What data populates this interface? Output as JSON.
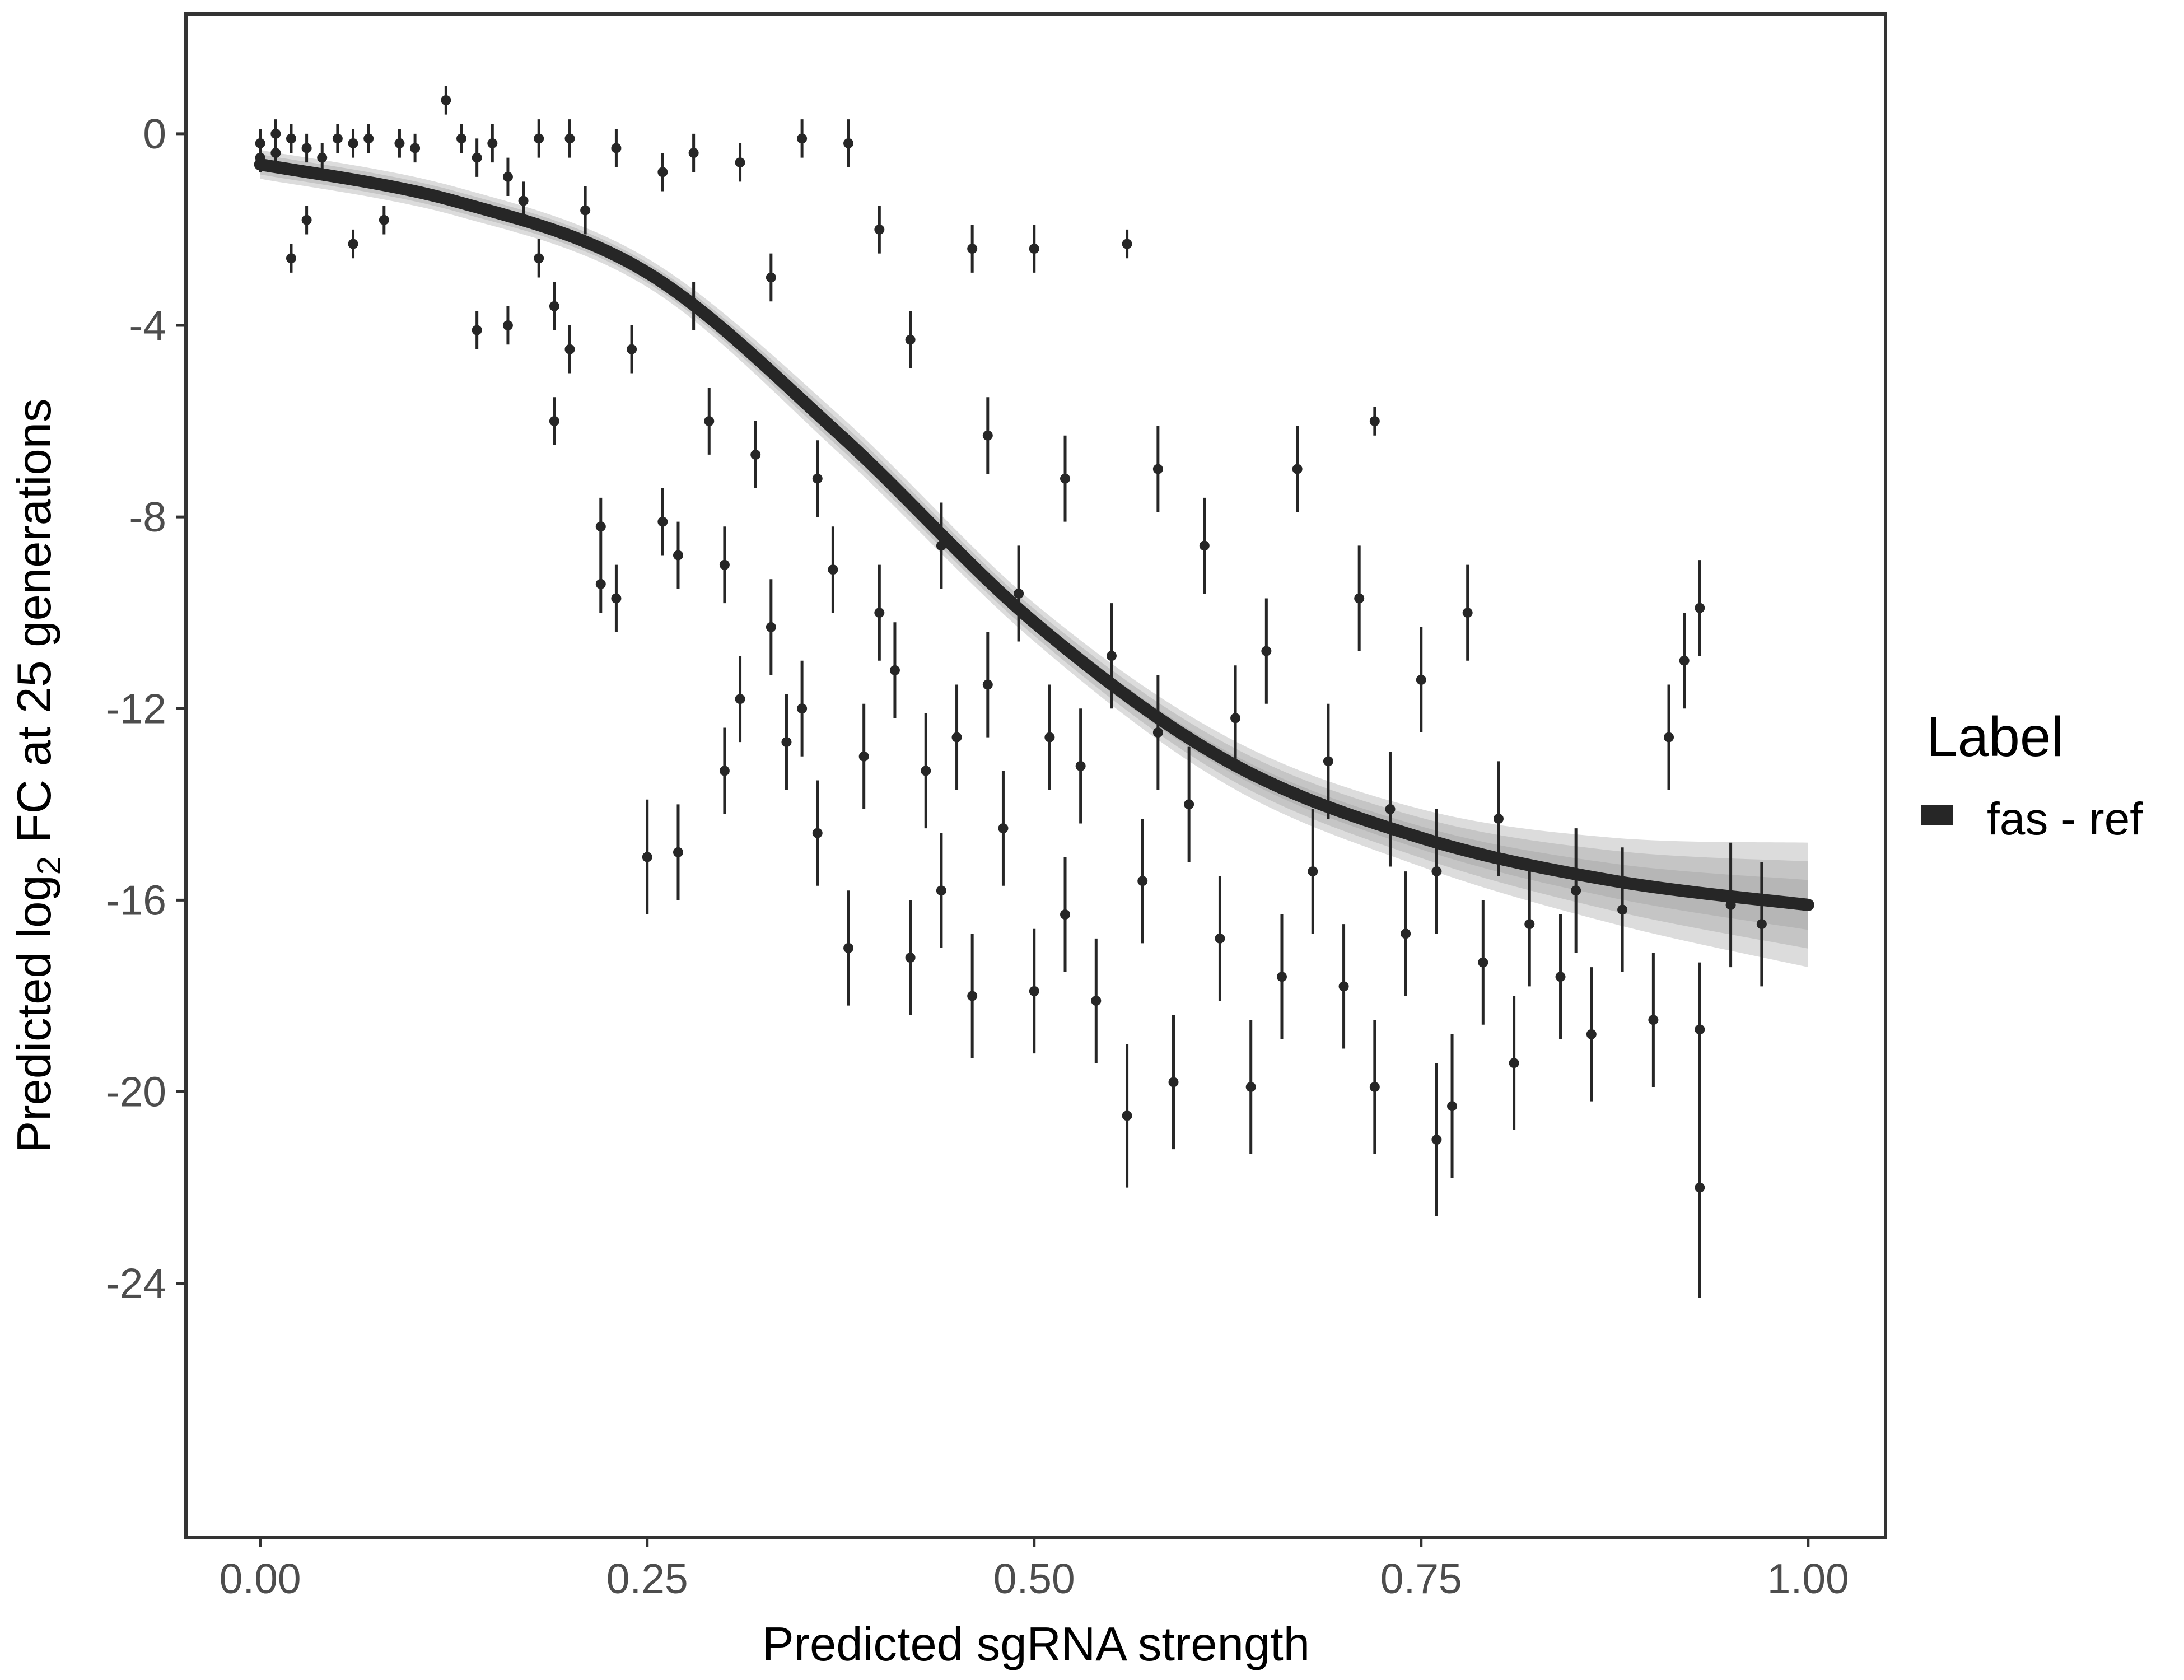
{
  "chart_data": {
    "type": "scatter",
    "xlabel": "Predicted sgRNA strength",
    "ylabel_parts": [
      "Predicted  log",
      "2",
      " FC at 25 generations"
    ],
    "xlim": [
      -0.048,
      1.05
    ],
    "ylim": [
      -29.3,
      2.5
    ],
    "xticks": [
      0,
      0.25,
      0.5,
      0.75,
      1.0
    ],
    "xtick_labels": [
      "0.00",
      "0.25",
      "0.50",
      "0.75",
      "1.00"
    ],
    "yticks": [
      0,
      -4,
      -8,
      -12,
      -16,
      -20,
      -24
    ],
    "ytick_labels": [
      "0",
      "-4",
      "-8",
      "-12",
      "-16",
      "-20",
      "-24"
    ],
    "grid": false,
    "legend": {
      "title": "Label",
      "position": "right",
      "entries": [
        {
          "label": "fas - ref",
          "color": "#262626"
        }
      ]
    },
    "colors": {
      "points": "#262626",
      "fit": "#262626",
      "band": "#9a9a9a"
    },
    "points_with_errorbars": [
      [
        0.0,
        -0.2,
        0.3
      ],
      [
        0.0,
        -0.5,
        0.3
      ],
      [
        0.01,
        0.0,
        0.3
      ],
      [
        0.01,
        -0.4,
        0.3
      ],
      [
        0.02,
        -2.6,
        0.3
      ],
      [
        0.02,
        -0.1,
        0.3
      ],
      [
        0.03,
        -0.3,
        0.3
      ],
      [
        0.03,
        -1.8,
        0.3
      ],
      [
        0.04,
        -0.5,
        0.3
      ],
      [
        0.05,
        -0.1,
        0.3
      ],
      [
        0.06,
        -0.2,
        0.3
      ],
      [
        0.06,
        -2.3,
        0.3
      ],
      [
        0.07,
        -0.1,
        0.3
      ],
      [
        0.08,
        -1.8,
        0.3
      ],
      [
        0.09,
        -0.2,
        0.3
      ],
      [
        0.1,
        -0.3,
        0.3
      ],
      [
        0.12,
        0.7,
        0.3
      ],
      [
        0.13,
        -0.1,
        0.3
      ],
      [
        0.14,
        -0.5,
        0.4
      ],
      [
        0.14,
        -4.1,
        0.4
      ],
      [
        0.15,
        -0.2,
        0.4
      ],
      [
        0.16,
        -4.0,
        0.4
      ],
      [
        0.16,
        -0.9,
        0.4
      ],
      [
        0.17,
        -1.4,
        0.4
      ],
      [
        0.18,
        -2.6,
        0.4
      ],
      [
        0.18,
        -0.1,
        0.4
      ],
      [
        0.19,
        -3.6,
        0.5
      ],
      [
        0.19,
        -6.0,
        0.5
      ],
      [
        0.2,
        -0.1,
        0.4
      ],
      [
        0.2,
        -4.5,
        0.5
      ],
      [
        0.21,
        -1.6,
        0.5
      ],
      [
        0.22,
        -8.2,
        0.6
      ],
      [
        0.22,
        -9.4,
        0.6
      ],
      [
        0.23,
        -9.7,
        0.7
      ],
      [
        0.23,
        -0.3,
        0.4
      ],
      [
        0.24,
        -4.5,
        0.5
      ],
      [
        0.25,
        -15.1,
        1.2
      ],
      [
        0.26,
        -8.1,
        0.7
      ],
      [
        0.26,
        -0.8,
        0.4
      ],
      [
        0.27,
        -15.0,
        1.0
      ],
      [
        0.27,
        -8.8,
        0.7
      ],
      [
        0.28,
        -3.6,
        0.5
      ],
      [
        0.28,
        -0.4,
        0.4
      ],
      [
        0.29,
        -6.0,
        0.7
      ],
      [
        0.3,
        -13.3,
        0.9
      ],
      [
        0.3,
        -9.0,
        0.8
      ],
      [
        0.31,
        -11.8,
        0.9
      ],
      [
        0.31,
        -0.6,
        0.4
      ],
      [
        0.32,
        -6.7,
        0.7
      ],
      [
        0.33,
        -10.3,
        1.0
      ],
      [
        0.33,
        -3.0,
        0.5
      ],
      [
        0.34,
        -12.7,
        1.0
      ],
      [
        0.35,
        -12.0,
        1.0
      ],
      [
        0.35,
        -0.1,
        0.4
      ],
      [
        0.36,
        -7.2,
        0.8
      ],
      [
        0.36,
        -14.6,
        1.1
      ],
      [
        0.37,
        -9.1,
        0.9
      ],
      [
        0.38,
        -17.0,
        1.2
      ],
      [
        0.38,
        -0.2,
        0.5
      ],
      [
        0.39,
        -13.0,
        1.1
      ],
      [
        0.4,
        -10.0,
        1.0
      ],
      [
        0.4,
        -2.0,
        0.5
      ],
      [
        0.41,
        -11.2,
        1.0
      ],
      [
        0.42,
        -17.2,
        1.2
      ],
      [
        0.42,
        -4.3,
        0.6
      ],
      [
        0.43,
        -13.3,
        1.2
      ],
      [
        0.44,
        -15.8,
        1.2
      ],
      [
        0.44,
        -8.6,
        0.9
      ],
      [
        0.45,
        -12.6,
        1.1
      ],
      [
        0.46,
        -18.0,
        1.3
      ],
      [
        0.46,
        -2.4,
        0.5
      ],
      [
        0.47,
        -11.5,
        1.1
      ],
      [
        0.47,
        -6.3,
        0.8
      ],
      [
        0.48,
        -14.5,
        1.2
      ],
      [
        0.49,
        -9.6,
        1.0
      ],
      [
        0.5,
        -17.9,
        1.3
      ],
      [
        0.5,
        -2.4,
        0.5
      ],
      [
        0.51,
        -12.6,
        1.1
      ],
      [
        0.52,
        -16.3,
        1.2
      ],
      [
        0.52,
        -7.2,
        0.9
      ],
      [
        0.53,
        -13.2,
        1.2
      ],
      [
        0.54,
        -18.1,
        1.3
      ],
      [
        0.55,
        -10.9,
        1.1
      ],
      [
        0.56,
        -20.5,
        1.5
      ],
      [
        0.56,
        -2.3,
        0.3
      ],
      [
        0.57,
        -15.6,
        1.3
      ],
      [
        0.58,
        -12.5,
        1.2
      ],
      [
        0.58,
        -7.0,
        0.9
      ],
      [
        0.59,
        -19.8,
        1.4
      ],
      [
        0.6,
        -14.0,
        1.2
      ],
      [
        0.61,
        -8.6,
        1.0
      ],
      [
        0.62,
        -16.8,
        1.3
      ],
      [
        0.63,
        -12.2,
        1.1
      ],
      [
        0.64,
        -19.9,
        1.4
      ],
      [
        0.65,
        -10.8,
        1.1
      ],
      [
        0.66,
        -17.6,
        1.3
      ],
      [
        0.67,
        -7.0,
        0.9
      ],
      [
        0.68,
        -15.4,
        1.3
      ],
      [
        0.69,
        -13.1,
        1.2
      ],
      [
        0.7,
        -17.8,
        1.3
      ],
      [
        0.71,
        -9.7,
        1.1
      ],
      [
        0.72,
        -6.0,
        0.3
      ],
      [
        0.72,
        -19.9,
        1.4
      ],
      [
        0.73,
        -14.1,
        1.2
      ],
      [
        0.74,
        -16.7,
        1.3
      ],
      [
        0.75,
        -11.4,
        1.1
      ],
      [
        0.76,
        -21.0,
        1.6
      ],
      [
        0.76,
        -15.4,
        1.3
      ],
      [
        0.77,
        -20.3,
        1.5
      ],
      [
        0.78,
        -10.0,
        1.0
      ],
      [
        0.79,
        -17.3,
        1.3
      ],
      [
        0.8,
        -14.3,
        1.2
      ],
      [
        0.81,
        -19.4,
        1.4
      ],
      [
        0.82,
        -16.5,
        1.3
      ],
      [
        0.84,
        -17.6,
        1.3
      ],
      [
        0.85,
        -15.8,
        1.3
      ],
      [
        0.86,
        -18.8,
        1.4
      ],
      [
        0.88,
        -16.2,
        1.3
      ],
      [
        0.9,
        -18.5,
        1.4
      ],
      [
        0.91,
        -12.6,
        1.1
      ],
      [
        0.92,
        -11.0,
        1.0
      ],
      [
        0.93,
        -22.0,
        2.3
      ],
      [
        0.93,
        -9.9,
        1.0
      ],
      [
        0.93,
        -18.7,
        1.4
      ],
      [
        0.95,
        -16.1,
        1.3
      ],
      [
        0.97,
        -16.5,
        1.3
      ]
    ],
    "fit": {
      "x": [
        0,
        0.125,
        0.25,
        0.375,
        0.5,
        0.625,
        0.75,
        0.875,
        1.0
      ],
      "y": [
        -0.64,
        -1.4,
        -2.9,
        -6.3,
        -10.2,
        -13.1,
        -14.7,
        -15.6,
        -16.1
      ],
      "band_halfwidth": [
        0.3,
        0.3,
        0.3,
        0.4,
        0.4,
        0.5,
        0.6,
        0.9,
        1.3
      ]
    }
  }
}
